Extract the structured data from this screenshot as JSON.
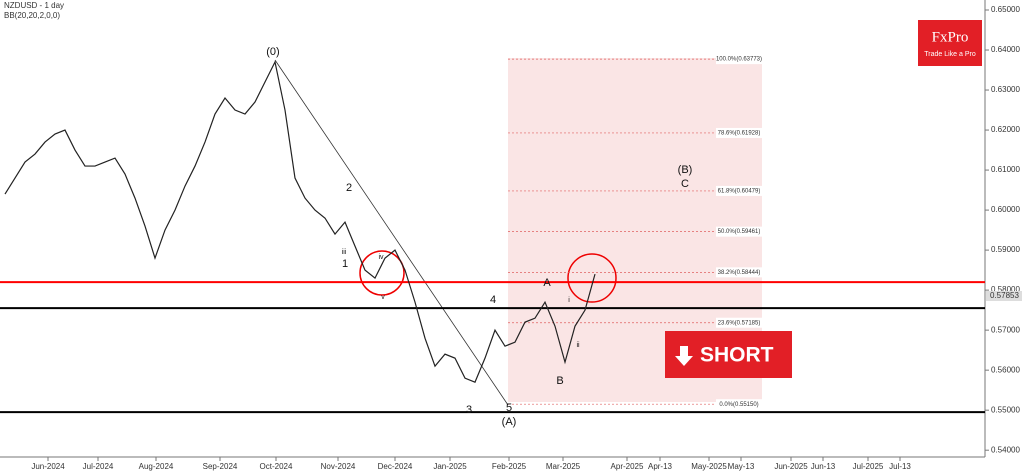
{
  "header": {
    "symbol": "NZDUSD - 1 day",
    "indicator": "BB(20,20,2,0,0)"
  },
  "logo": {
    "name": "FxPro",
    "tagline": "Trade Like a Pro"
  },
  "signal": "SHORT",
  "chart_data": {
    "type": "line",
    "color": "#222222",
    "categories": [
      null,
      null,
      null,
      null,
      null,
      null,
      null,
      null,
      null,
      null,
      null,
      null,
      null,
      null,
      null,
      null,
      null,
      null,
      null,
      null,
      null,
      null,
      null,
      null,
      null,
      null,
      null,
      null,
      null,
      null,
      null,
      null,
      null,
      null,
      null,
      null,
      null,
      null,
      null,
      null,
      null,
      null,
      null,
      null,
      null,
      null,
      null,
      null,
      null,
      null,
      null,
      null,
      null,
      null,
      null,
      null,
      null,
      null,
      null,
      null
    ],
    "values": [
      0.604,
      0.608,
      0.612,
      0.614,
      0.617,
      0.619,
      0.62,
      0.615,
      0.611,
      0.611,
      0.612,
      0.613,
      0.609,
      0.603,
      0.596,
      0.588,
      0.595,
      0.6,
      0.606,
      0.611,
      0.617,
      0.624,
      0.628,
      0.625,
      0.624,
      0.627,
      0.632,
      0.637,
      0.625,
      0.608,
      0.603,
      0.6,
      0.598,
      0.594,
      0.597,
      0.591,
      0.585,
      0.583,
      0.588,
      0.59,
      0.585,
      0.577,
      0.568,
      0.561,
      0.564,
      0.563,
      0.558,
      0.557,
      0.563,
      0.57,
      0.566,
      0.567,
      0.572,
      0.573,
      0.577,
      0.571,
      0.562,
      0.571,
      0.575,
      0.584
    ],
    "ylim": [
      0.5383,
      0.6525
    ],
    "yticks": [
      {
        "value": 0.65,
        "label": "0.65000"
      },
      {
        "value": 0.64,
        "label": "0.64000"
      },
      {
        "value": 0.63,
        "label": "0.63000"
      },
      {
        "value": 0.62,
        "label": "0.62000"
      },
      {
        "value": 0.61,
        "label": "0.61000"
      },
      {
        "value": 0.6,
        "label": "0.60000"
      },
      {
        "value": 0.59,
        "label": "0.59000"
      },
      {
        "value": 0.58,
        "label": "0.58000"
      },
      {
        "value": 0.57,
        "label": "0.57000"
      },
      {
        "value": 0.56,
        "label": "0.56000"
      },
      {
        "value": 0.55,
        "label": "0.55000"
      },
      {
        "value": 0.54,
        "label": "0.54000"
      }
    ],
    "xtick_labels": [
      "Jun-2024",
      "Jul-2024",
      "Aug-2024",
      "Sep-2024",
      "Oct-2024",
      "Nov-2024",
      "Dec-2024",
      "Jan-2025",
      "Feb-2025",
      "Mar-2025",
      "Apr-2025",
      "Apr-13",
      "May-2025",
      "May-13",
      "Jun-2025",
      "Jun-13",
      "Jul-2025",
      "Jul-13"
    ],
    "hlines": [
      {
        "value": 0.582,
        "color": "#ff0000"
      },
      {
        "value": 0.5755,
        "color": "#000000"
      },
      {
        "value": 0.5495,
        "color": "#000000"
      }
    ],
    "fib_levels": [
      {
        "value": 0.63773,
        "label": "100.0%(0.63773)"
      },
      {
        "value": 0.61928,
        "label": "78.6%(0.61928)"
      },
      {
        "value": 0.60479,
        "label": "61.8%(0.60479)"
      },
      {
        "value": 0.59461,
        "label": "50.0%(0.59461)"
      },
      {
        "value": 0.58444,
        "label": "38.2%(0.58444)"
      },
      {
        "value": 0.57185,
        "label": "23.6%(0.57185)"
      },
      {
        "value": 0.5515,
        "label": "0.0%(0.55150)"
      }
    ],
    "last_price": {
      "value": 0.57853,
      "label": "0.57853"
    },
    "annotations": [
      "(0)",
      "1",
      "2",
      "3",
      "4",
      "5",
      "(A)",
      "A",
      "B",
      "(B)",
      "C",
      "iii",
      "iv",
      "v",
      "i",
      "ii"
    ]
  }
}
